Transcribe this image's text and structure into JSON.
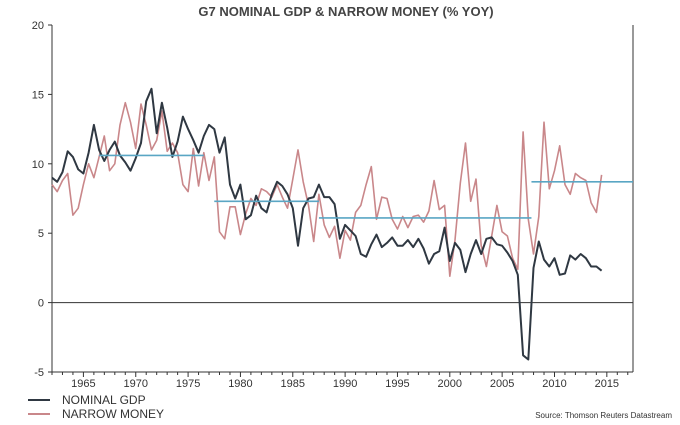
{
  "chart_data": {
    "type": "line",
    "title": "G7 NOMINAL GDP & NARROW MONEY (% YOY)",
    "xlabel": "",
    "ylabel": "",
    "xlim": [
      1962,
      2017.5
    ],
    "ylim": [
      -5,
      20
    ],
    "yticks": [
      -5,
      0,
      5,
      10,
      15,
      20
    ],
    "xticks": [
      1965,
      1970,
      1975,
      1980,
      1985,
      1990,
      1995,
      2000,
      2005,
      2010,
      2015
    ],
    "grid": false,
    "legend_position": "bottom-left",
    "zero_line": true,
    "source": "Source: Thomson Reuters Datastream",
    "colors": {
      "gdp": "#2f3842",
      "money": "#c9878a",
      "average": "#5aa6c4",
      "axis": "#333333"
    },
    "series": [
      {
        "name": "NOMINAL GDP",
        "key": "gdp",
        "x": [
          1962,
          1962.5,
          1963,
          1963.5,
          1964,
          1964.5,
          1965,
          1965.5,
          1966,
          1966.5,
          1967,
          1967.5,
          1968,
          1968.5,
          1969,
          1969.5,
          1970,
          1970.5,
          1971,
          1971.5,
          1972,
          1972.5,
          1973,
          1973.5,
          1974,
          1974.5,
          1975,
          1975.5,
          1976,
          1976.5,
          1977,
          1977.5,
          1978,
          1978.5,
          1979,
          1979.5,
          1980,
          1980.5,
          1981,
          1981.5,
          1982,
          1982.5,
          1983,
          1983.5,
          1984,
          1984.5,
          1985,
          1985.5,
          1986,
          1986.5,
          1987,
          1987.5,
          1988,
          1988.5,
          1989,
          1989.5,
          1990,
          1990.5,
          1991,
          1991.5,
          1992,
          1992.5,
          1993,
          1993.5,
          1994,
          1994.5,
          1995,
          1995.5,
          1996,
          1996.5,
          1997,
          1997.5,
          1998,
          1998.5,
          1999,
          1999.5,
          2000,
          2000.5,
          2001,
          2001.5,
          2002,
          2002.5,
          2003,
          2003.5,
          2004,
          2004.5,
          2005,
          2005.5,
          2006,
          2006.5,
          2007,
          2007.5,
          2008,
          2008.5,
          2009,
          2009.5,
          2010,
          2010.5,
          2011,
          2011.5,
          2012,
          2012.5,
          2013,
          2013.5,
          2014,
          2014.5
        ],
        "values": [
          9.0,
          8.7,
          9.4,
          10.9,
          10.5,
          9.6,
          9.3,
          10.8,
          12.8,
          11.0,
          10.2,
          11.0,
          11.6,
          10.6,
          10.1,
          9.5,
          10.4,
          11.5,
          14.5,
          15.4,
          12.2,
          14.4,
          12.6,
          10.5,
          11.6,
          13.4,
          12.5,
          11.7,
          10.8,
          12.0,
          12.8,
          12.5,
          10.8,
          11.9,
          8.5,
          7.5,
          8.5,
          6.0,
          6.3,
          7.7,
          6.8,
          6.5,
          7.8,
          8.7,
          8.4,
          7.8,
          6.8,
          4.1,
          6.8,
          7.5,
          7.6,
          8.5,
          7.6,
          7.6,
          7.1,
          4.6,
          5.6,
          5.2,
          4.8,
          3.5,
          3.3,
          4.2,
          4.9,
          4.0,
          4.3,
          4.7,
          4.1,
          4.1,
          4.5,
          4.0,
          4.6,
          3.9,
          2.8,
          3.5,
          3.7,
          5.4,
          3.0,
          4.3,
          3.8,
          2.2,
          3.5,
          4.5,
          3.5,
          4.6,
          4.7,
          4.2,
          4.1,
          3.6,
          3.0,
          2.0,
          -3.8,
          -4.1,
          2.5,
          4.4,
          3.1,
          2.6,
          3.2,
          2.0,
          2.1,
          3.4,
          3.1,
          3.5,
          3.2,
          2.6,
          2.6,
          2.3
        ]
      },
      {
        "name": "NARROW MONEY",
        "key": "money",
        "x": [
          1962,
          1962.5,
          1963,
          1963.5,
          1964,
          1964.5,
          1965,
          1965.5,
          1966,
          1966.5,
          1967,
          1967.5,
          1968,
          1968.5,
          1969,
          1969.5,
          1970,
          1970.5,
          1971,
          1971.5,
          1972,
          1972.5,
          1973,
          1973.5,
          1974,
          1974.5,
          1975,
          1975.5,
          1976,
          1976.5,
          1977,
          1977.5,
          1978,
          1978.5,
          1979,
          1979.5,
          1980,
          1980.5,
          1981,
          1981.5,
          1982,
          1982.5,
          1983,
          1983.5,
          1984,
          1984.5,
          1985,
          1985.5,
          1986,
          1986.5,
          1987,
          1987.5,
          1988,
          1988.5,
          1989,
          1989.5,
          1990,
          1990.5,
          1991,
          1991.5,
          1992,
          1992.5,
          1993,
          1993.5,
          1994,
          1994.5,
          1995,
          1995.5,
          1996,
          1996.5,
          1997,
          1997.5,
          1998,
          1998.5,
          1999,
          1999.5,
          2000,
          2000.5,
          2001,
          2001.5,
          2002,
          2002.5,
          2003,
          2003.5,
          2004,
          2004.5,
          2005,
          2005.5,
          2006,
          2006.5,
          2007,
          2007.5,
          2008,
          2008.5,
          2009,
          2009.5,
          2010,
          2010.5,
          2011,
          2011.5,
          2012,
          2012.5,
          2013,
          2013.5,
          2014,
          2014.5
        ],
        "values": [
          8.5,
          8.0,
          8.8,
          9.3,
          6.3,
          6.8,
          8.5,
          10.0,
          9.0,
          10.5,
          12.0,
          9.5,
          10.0,
          12.8,
          14.4,
          13.0,
          11.1,
          14.3,
          12.8,
          11.0,
          11.7,
          13.8,
          10.9,
          11.5,
          10.8,
          8.5,
          8.0,
          11.1,
          8.4,
          10.8,
          8.8,
          10.5,
          5.1,
          4.6,
          6.9,
          6.9,
          4.9,
          6.4,
          7.5,
          7.0,
          8.2,
          8.0,
          7.6,
          8.5,
          7.6,
          6.8,
          8.9,
          11.0,
          8.7,
          7.0,
          4.4,
          7.8,
          5.6,
          4.7,
          5.5,
          3.2,
          5.2,
          4.5,
          6.5,
          7.0,
          8.5,
          9.8,
          6.0,
          7.6,
          7.5,
          6.0,
          5.3,
          6.2,
          5.4,
          6.2,
          6.3,
          5.8,
          6.6,
          8.8,
          6.7,
          7.0,
          1.9,
          4.5,
          8.6,
          11.5,
          7.3,
          8.9,
          4.1,
          2.6,
          4.8,
          7.0,
          5.1,
          4.8,
          3.2,
          2.4,
          12.3,
          6.0,
          3.5,
          6.2,
          13.0,
          8.2,
          9.5,
          11.3,
          8.5,
          7.8,
          9.3,
          9.0,
          8.8,
          7.2,
          6.5,
          9.2
        ]
      }
    ],
    "period_averages": [
      {
        "series": "money",
        "x_start": 1966.5,
        "x_end": 1976.5,
        "y": 10.6
      },
      {
        "series": "money",
        "x_start": 1977.5,
        "x_end": 1987.5,
        "y": 7.3
      },
      {
        "series": "money",
        "x_start": 1987.5,
        "x_end": 2007.8,
        "y": 6.1
      },
      {
        "series": "money",
        "x_start": 2007.8,
        "x_end": 2017.5,
        "y": 8.7
      }
    ]
  }
}
